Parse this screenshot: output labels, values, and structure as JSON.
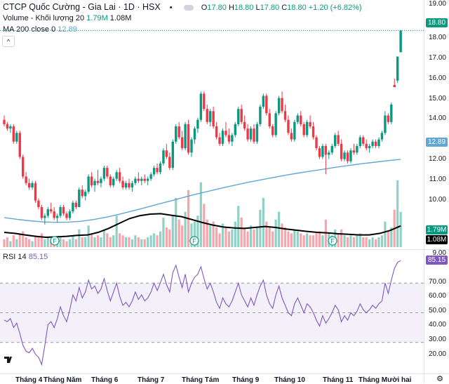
{
  "header": {
    "symbol": "CTCP Quốc Cường - Gia Lai · 1D · HSX",
    "open_label": "O",
    "open": "17.80",
    "high_label": "H",
    "high": "18.80",
    "low_label": "L",
    "low": "17.80",
    "close_label": "C",
    "close": "18.80",
    "change": "+1.20 (+6.82%)"
  },
  "volume_legend": {
    "label": "Volume - Khối lượng 20",
    "value1": "1.79M",
    "value2": "1.08M"
  },
  "ma_legend": {
    "label": "MA 200 close 0",
    "value": "12.89"
  },
  "rsi_legend": {
    "label": "RSI 14",
    "value": "85.15"
  },
  "price_tags": {
    "last": "18.80",
    "ma": "12.89",
    "vol1": "1.79M",
    "vol2": "1.08M",
    "rsi": "85.15"
  },
  "colors": {
    "up": "#089981",
    "down": "#f23645",
    "ma": "#5fa8d3",
    "rsi": "#7e57c2",
    "vol_avg": "#000000"
  },
  "price_axis": [
    "19.00",
    "18.00",
    "17.00",
    "16.00",
    "15.00",
    "14.00",
    "13.00",
    "12.00",
    "11.00",
    "10.00",
    "9.00"
  ],
  "rsi_axis": [
    "90.00",
    "80.00",
    "70.00",
    "60.00",
    "50.00",
    "40.00",
    "30.00",
    "20.00"
  ],
  "x_labels": [
    "Tháng 4",
    "Tháng Năm",
    "Tháng 6",
    "Tháng 7",
    "Tháng Tám",
    "Tháng 9",
    "Tháng 10",
    "Tháng 11",
    "Tháng Mười hai"
  ],
  "event_marker": "F",
  "chart_data": {
    "type": "candlestick",
    "ylim": [
      8.8,
      19.1
    ],
    "rsi_ylim": [
      10,
      90
    ],
    "rsi_levels": [
      70,
      50,
      30
    ],
    "candles": [
      [
        14.7,
        14.9,
        14.4,
        14.5
      ],
      [
        14.5,
        14.6,
        14.2,
        14.3
      ],
      [
        14.3,
        14.5,
        14.1,
        14.4
      ],
      [
        14.4,
        14.5,
        13.6,
        13.7
      ],
      [
        13.7,
        14.2,
        13.6,
        14.1
      ],
      [
        14.1,
        14.2,
        12.9,
        13.0
      ],
      [
        13.0,
        13.1,
        12.0,
        12.1
      ],
      [
        12.1,
        12.3,
        11.7,
        11.8
      ],
      [
        11.8,
        12.0,
        11.5,
        11.6
      ],
      [
        11.6,
        11.9,
        11.5,
        11.8
      ],
      [
        11.8,
        11.9,
        10.9,
        11.0
      ],
      [
        11.0,
        11.1,
        10.6,
        10.7
      ],
      [
        10.7,
        10.8,
        10.1,
        10.2
      ],
      [
        10.2,
        10.4,
        9.9,
        10.3
      ],
      [
        10.3,
        10.7,
        10.2,
        10.6
      ],
      [
        10.6,
        10.9,
        10.4,
        10.5
      ],
      [
        10.5,
        10.7,
        10.1,
        10.2
      ],
      [
        10.2,
        10.4,
        10.0,
        10.3
      ],
      [
        10.3,
        10.8,
        10.2,
        10.7
      ],
      [
        10.7,
        10.8,
        10.3,
        10.4
      ],
      [
        10.4,
        10.5,
        10.1,
        10.2
      ],
      [
        10.2,
        10.6,
        10.1,
        10.5
      ],
      [
        10.5,
        11.0,
        10.4,
        10.9
      ],
      [
        10.9,
        11.0,
        10.6,
        10.7
      ],
      [
        10.7,
        11.6,
        10.7,
        11.5
      ],
      [
        11.5,
        11.7,
        11.1,
        11.2
      ],
      [
        11.2,
        11.5,
        11.0,
        11.4
      ],
      [
        11.4,
        12.2,
        11.3,
        12.1
      ],
      [
        12.1,
        12.3,
        11.6,
        11.7
      ],
      [
        11.7,
        12.0,
        11.4,
        11.9
      ],
      [
        11.9,
        12.4,
        11.7,
        11.8
      ],
      [
        11.8,
        12.1,
        11.6,
        12.0
      ],
      [
        12.0,
        12.6,
        11.9,
        12.5
      ],
      [
        12.5,
        12.6,
        12.0,
        12.1
      ],
      [
        12.1,
        12.2,
        11.6,
        11.7
      ],
      [
        11.7,
        12.1,
        11.6,
        12.0
      ],
      [
        12.0,
        12.4,
        11.9,
        12.3
      ],
      [
        12.3,
        12.5,
        11.8,
        11.9
      ],
      [
        11.9,
        12.1,
        11.5,
        11.6
      ],
      [
        11.6,
        11.9,
        11.5,
        11.8
      ],
      [
        11.8,
        12.0,
        11.5,
        11.6
      ],
      [
        11.6,
        11.9,
        11.4,
        11.8
      ],
      [
        11.8,
        12.1,
        11.7,
        12.0
      ],
      [
        12.0,
        12.3,
        11.8,
        11.9
      ],
      [
        11.9,
        12.1,
        11.7,
        12.0
      ],
      [
        12.0,
        12.2,
        11.8,
        11.9
      ],
      [
        11.9,
        12.1,
        11.7,
        12.0
      ],
      [
        12.0,
        12.3,
        11.9,
        12.2
      ],
      [
        12.2,
        12.6,
        12.1,
        12.5
      ],
      [
        12.5,
        12.7,
        12.2,
        12.3
      ],
      [
        12.3,
        12.8,
        12.2,
        12.7
      ],
      [
        12.7,
        13.4,
        12.6,
        13.3
      ],
      [
        13.3,
        13.6,
        12.9,
        13.0
      ],
      [
        13.0,
        13.2,
        12.4,
        12.5
      ],
      [
        12.5,
        13.8,
        12.4,
        13.7
      ],
      [
        13.7,
        14.5,
        13.6,
        14.4
      ],
      [
        14.4,
        14.6,
        13.8,
        13.9
      ],
      [
        13.9,
        14.2,
        13.3,
        13.4
      ],
      [
        13.4,
        14.6,
        13.3,
        14.5
      ],
      [
        14.5,
        14.7,
        13.1,
        13.2
      ],
      [
        13.2,
        13.9,
        13.0,
        13.8
      ],
      [
        13.8,
        14.4,
        13.6,
        14.3
      ],
      [
        14.3,
        14.8,
        14.1,
        14.7
      ],
      [
        14.7,
        16.0,
        14.6,
        15.9
      ],
      [
        15.9,
        16.0,
        15.1,
        15.2
      ],
      [
        15.2,
        15.4,
        14.5,
        14.6
      ],
      [
        14.6,
        15.2,
        14.4,
        15.1
      ],
      [
        15.1,
        15.3,
        14.3,
        14.4
      ],
      [
        14.4,
        14.6,
        13.8,
        13.9
      ],
      [
        13.9,
        14.1,
        13.5,
        13.6
      ],
      [
        13.6,
        14.3,
        13.5,
        14.2
      ],
      [
        14.2,
        14.6,
        13.9,
        14.0
      ],
      [
        14.0,
        14.3,
        13.6,
        13.7
      ],
      [
        13.7,
        14.1,
        13.5,
        14.0
      ],
      [
        14.0,
        14.6,
        13.9,
        14.5
      ],
      [
        14.5,
        15.3,
        14.4,
        15.2
      ],
      [
        15.2,
        15.4,
        14.5,
        14.6
      ],
      [
        14.6,
        14.9,
        14.2,
        14.3
      ],
      [
        14.3,
        14.5,
        13.7,
        13.8
      ],
      [
        13.8,
        14.4,
        13.7,
        14.3
      ],
      [
        14.3,
        14.5,
        13.6,
        13.7
      ],
      [
        13.7,
        14.6,
        13.6,
        14.5
      ],
      [
        14.5,
        15.4,
        14.4,
        15.3
      ],
      [
        15.3,
        15.9,
        15.2,
        15.8
      ],
      [
        15.8,
        15.9,
        14.9,
        15.0
      ],
      [
        15.0,
        15.2,
        14.3,
        14.4
      ],
      [
        14.4,
        14.5,
        13.9,
        14.0
      ],
      [
        14.0,
        15.1,
        13.9,
        15.0
      ],
      [
        15.0,
        15.8,
        14.9,
        15.7
      ],
      [
        15.7,
        16.0,
        15.0,
        15.1
      ],
      [
        15.1,
        15.4,
        14.6,
        14.7
      ],
      [
        14.7,
        14.9,
        14.0,
        14.1
      ],
      [
        14.1,
        14.3,
        13.7,
        13.8
      ],
      [
        13.8,
        14.7,
        13.7,
        14.6
      ],
      [
        14.6,
        15.0,
        14.5,
        14.9
      ],
      [
        14.9,
        15.1,
        14.4,
        14.5
      ],
      [
        14.5,
        14.6,
        13.9,
        14.0
      ],
      [
        14.0,
        14.7,
        13.9,
        14.6
      ],
      [
        14.6,
        14.9,
        14.3,
        14.4
      ],
      [
        14.4,
        14.6,
        13.8,
        13.9
      ],
      [
        13.9,
        14.0,
        13.3,
        13.4
      ],
      [
        13.4,
        13.5,
        12.9,
        13.0
      ],
      [
        13.0,
        13.6,
        12.9,
        13.5
      ],
      [
        13.5,
        13.6,
        12.2,
        13.1
      ],
      [
        13.1,
        13.3,
        12.9,
        13.2
      ],
      [
        13.2,
        13.6,
        13.1,
        13.5
      ],
      [
        13.5,
        14.1,
        13.4,
        14.0
      ],
      [
        14.0,
        14.2,
        13.5,
        13.6
      ],
      [
        13.6,
        13.8,
        12.8,
        12.9
      ],
      [
        12.9,
        13.3,
        12.8,
        13.2
      ],
      [
        13.2,
        13.3,
        12.7,
        12.8
      ],
      [
        12.8,
        13.4,
        12.7,
        13.3
      ],
      [
        13.3,
        13.6,
        13.1,
        13.2
      ],
      [
        13.2,
        13.6,
        13.1,
        13.5
      ],
      [
        13.5,
        14.0,
        13.4,
        13.9
      ],
      [
        13.9,
        14.0,
        13.5,
        13.6
      ],
      [
        13.6,
        13.8,
        13.3,
        13.4
      ],
      [
        13.4,
        13.6,
        13.2,
        13.5
      ],
      [
        13.5,
        13.8,
        13.4,
        13.7
      ],
      [
        13.7,
        13.8,
        13.4,
        13.5
      ],
      [
        13.5,
        13.9,
        13.4,
        13.8
      ],
      [
        13.8,
        14.2,
        13.7,
        14.1
      ],
      [
        14.1,
        15.1,
        14.0,
        14.9
      ],
      [
        14.9,
        15.0,
        14.5,
        14.6
      ],
      [
        14.6,
        15.5,
        14.5,
        15.4
      ],
      [
        16.3,
        16.6,
        16.2,
        16.2
      ],
      [
        16.5,
        17.6,
        16.4,
        17.6
      ],
      [
        17.8,
        18.8,
        17.8,
        18.8
      ]
    ],
    "ma200": [
      10.22,
      10.14,
      10.07,
      10.02,
      10.0,
      10.01,
      10.05,
      10.13,
      10.24,
      10.37,
      10.52,
      10.67,
      10.83,
      10.98,
      11.14,
      11.29,
      11.43,
      11.57,
      11.7,
      11.83,
      11.94,
      12.05,
      12.16,
      12.26,
      12.35,
      12.44,
      12.53,
      12.61,
      12.69,
      12.76,
      12.83,
      12.89
    ],
    "volume": [
      0.4,
      0.5,
      0.3,
      0.6,
      0.4,
      0.7,
      0.8,
      0.5,
      0.4,
      0.3,
      0.6,
      0.5,
      0.7,
      0.4,
      0.5,
      0.4,
      0.3,
      0.3,
      0.5,
      0.4,
      0.3,
      0.4,
      0.6,
      0.4,
      0.9,
      0.5,
      0.5,
      1.1,
      0.7,
      0.5,
      0.6,
      0.5,
      0.9,
      0.7,
      0.5,
      0.6,
      1.6,
      0.7,
      0.6,
      0.5,
      0.5,
      0.4,
      0.6,
      0.5,
      0.4,
      0.4,
      0.5,
      0.6,
      0.7,
      0.6,
      0.8,
      1.5,
      1.0,
      0.9,
      1.6,
      2.5,
      1.4,
      1.1,
      1.8,
      2.9,
      1.2,
      1.3,
      1.6,
      3.3,
      2.2,
      1.4,
      1.1,
      1.3,
      1.0,
      0.7,
      1.2,
      1.0,
      0.8,
      0.9,
      1.3,
      2.1,
      1.5,
      1.0,
      0.8,
      1.1,
      0.9,
      1.0,
      1.9,
      2.5,
      1.3,
      1.0,
      0.8,
      1.4,
      1.8,
      1.2,
      1.0,
      0.8,
      0.7,
      0.9,
      0.8,
      0.7,
      0.6,
      0.7,
      0.6,
      0.6,
      0.7,
      0.8,
      0.6,
      1.4,
      0.7,
      0.6,
      0.9,
      0.7,
      0.9,
      0.6,
      0.5,
      0.6,
      0.5,
      0.6,
      0.7,
      0.5,
      0.5,
      0.4,
      0.5,
      0.4,
      0.5,
      0.6,
      1.3,
      0.8,
      1.0,
      1.9,
      3.4,
      1.79
    ],
    "volume_ma20": [
      0.75,
      0.7,
      0.62,
      0.55,
      0.5,
      0.52,
      0.55,
      0.6,
      0.62,
      0.75,
      0.95,
      1.2,
      1.45,
      1.6,
      1.68,
      1.7,
      1.62,
      1.55,
      1.4,
      1.25,
      1.12,
      1.02,
      0.98,
      0.95,
      1.0,
      1.05,
      1.0,
      0.92,
      0.86,
      0.8,
      0.75,
      0.72,
      0.68,
      0.65,
      0.62,
      0.62,
      0.7,
      0.85,
      1.08
    ],
    "rsi": [
      45,
      44,
      46,
      40,
      43,
      36,
      28,
      24,
      23,
      26,
      22,
      20,
      15,
      28,
      42,
      44,
      40,
      46,
      54,
      48,
      44,
      52,
      62,
      58,
      67,
      60,
      64,
      72,
      66,
      68,
      63,
      66,
      73,
      65,
      58,
      64,
      70,
      61,
      55,
      57,
      54,
      58,
      64,
      59,
      62,
      58,
      60,
      64,
      70,
      65,
      70,
      76,
      69,
      64,
      77,
      82,
      74,
      67,
      76,
      64,
      70,
      74,
      76,
      81,
      73,
      66,
      70,
      64,
      57,
      53,
      60,
      56,
      54,
      58,
      64,
      70,
      62,
      58,
      54,
      60,
      55,
      62,
      68,
      72,
      62,
      56,
      53,
      62,
      68,
      60,
      55,
      50,
      48,
      56,
      60,
      55,
      50,
      56,
      54,
      50,
      45,
      41,
      48,
      43,
      46,
      50,
      55,
      52,
      44,
      48,
      45,
      50,
      48,
      51,
      56,
      52,
      50,
      52,
      55,
      53,
      56,
      58,
      70,
      63,
      72,
      80,
      84,
      85.15
    ]
  }
}
